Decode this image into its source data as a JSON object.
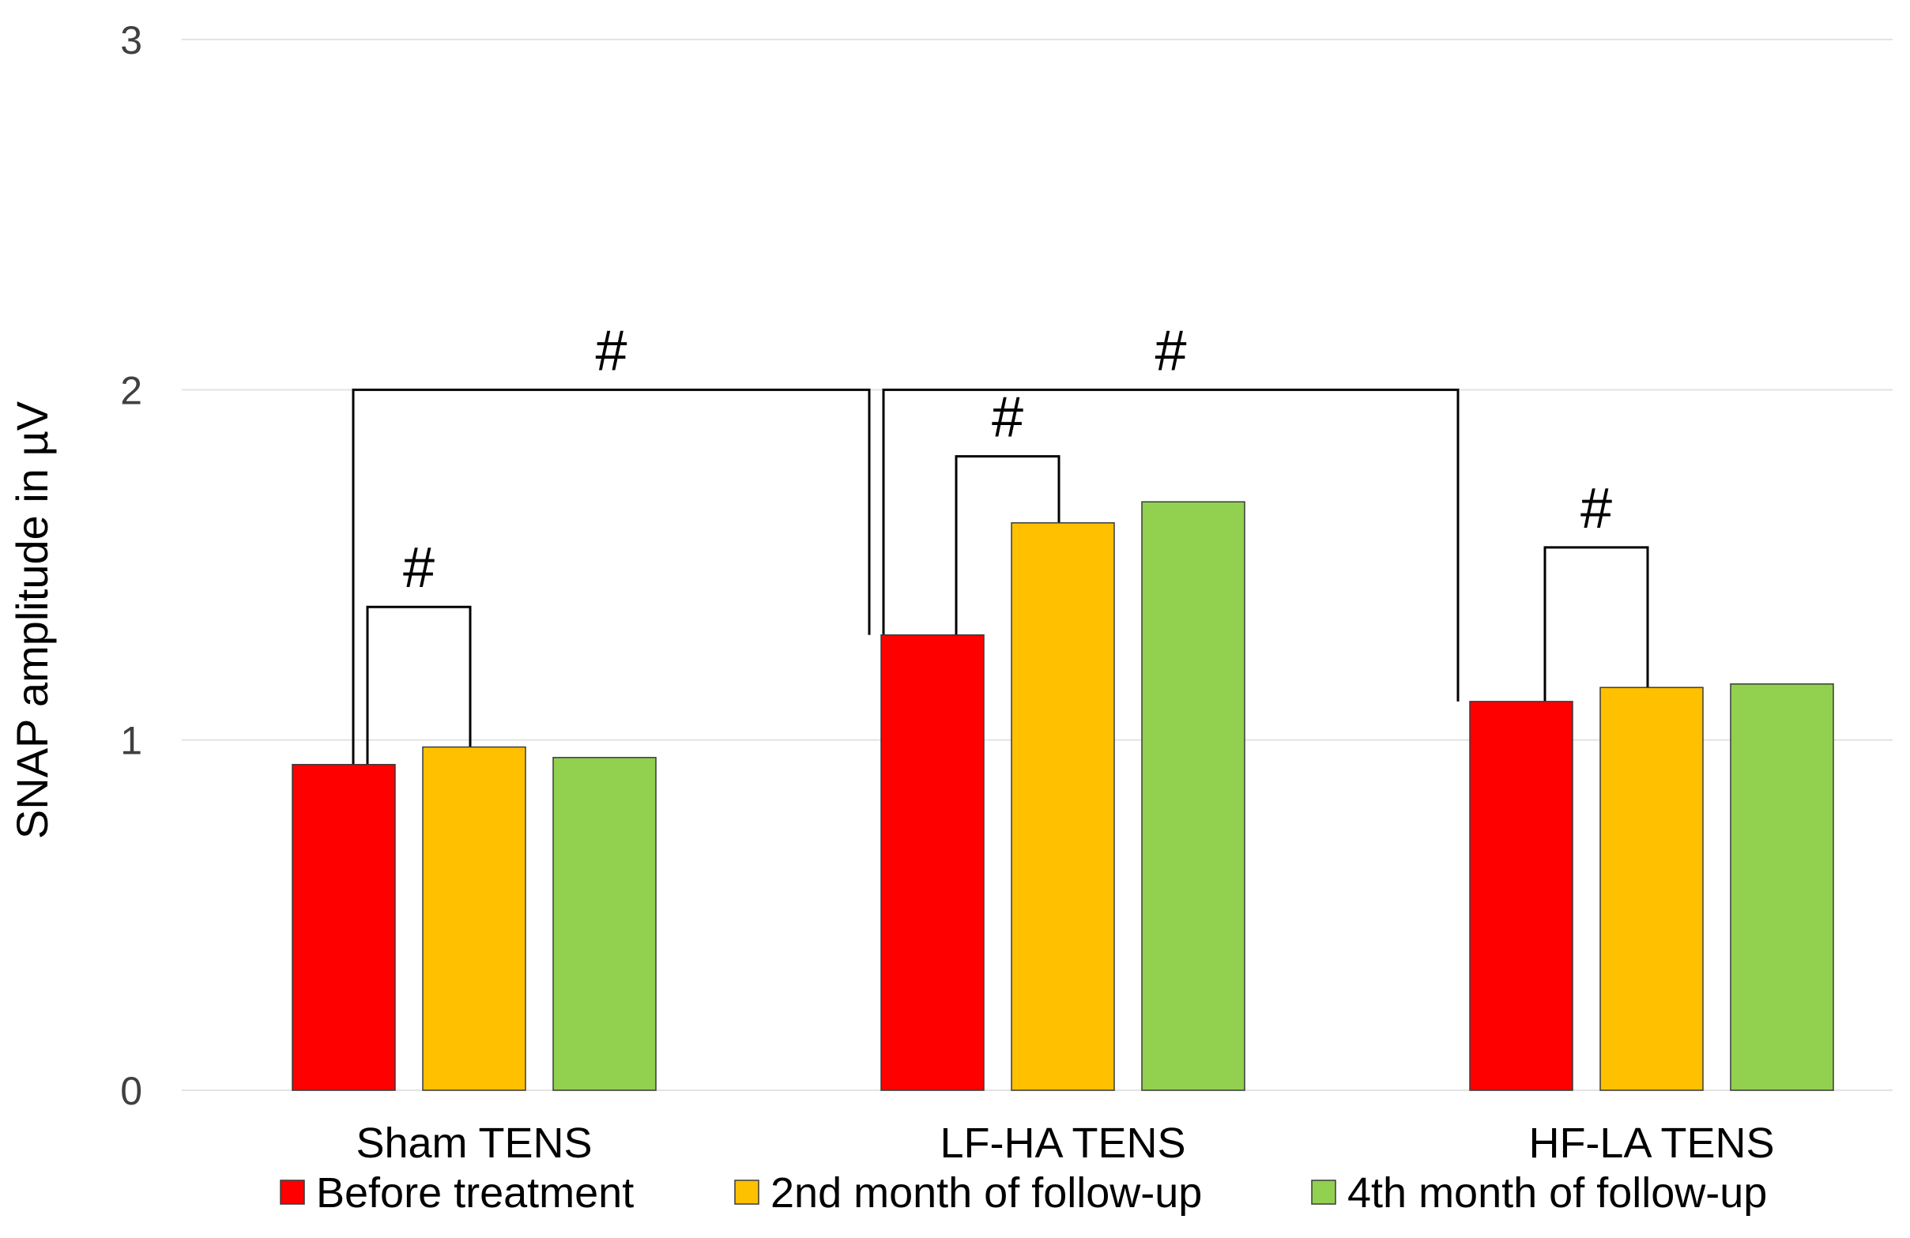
{
  "chart_data": {
    "type": "bar",
    "title": "",
    "xlabel": "",
    "ylabel": "SNAP amplitude in µV",
    "ylim": [
      0,
      3
    ],
    "yticks": [
      0,
      1,
      2,
      3
    ],
    "grid": true,
    "legend_position": "bottom",
    "categories": [
      "Sham TENS",
      "LF-HA TENS",
      "HF-LA TENS"
    ],
    "series": [
      {
        "name": "Before treatment",
        "color": "#ff0000",
        "values": [
          0.93,
          1.3,
          1.11
        ]
      },
      {
        "name": "2nd month of follow-up",
        "color": "#ffc000",
        "values": [
          0.98,
          1.62,
          1.15
        ]
      },
      {
        "name": "4th month of follow-up",
        "color": "#92d050",
        "values": [
          0.95,
          1.68,
          1.16
        ]
      }
    ],
    "annotations": [
      {
        "label": "#",
        "from": {
          "category": 0,
          "series": 0
        },
        "to": {
          "category": 0,
          "series": 1
        },
        "level": 1.38
      },
      {
        "label": "#",
        "from": {
          "category": 1,
          "series": 0
        },
        "to": {
          "category": 1,
          "series": 1
        },
        "level": 1.81
      },
      {
        "label": "#",
        "from": {
          "category": 2,
          "series": 0
        },
        "to": {
          "category": 2,
          "series": 1
        },
        "level": 1.55
      },
      {
        "label": "#",
        "from": {
          "category": 0,
          "series": 0
        },
        "to": {
          "category": 1,
          "series": 0
        },
        "level": 2.0
      },
      {
        "label": "#",
        "from": {
          "category": 1,
          "series": 0
        },
        "to": {
          "category": 2,
          "series": 0
        },
        "level": 2.0
      }
    ]
  }
}
